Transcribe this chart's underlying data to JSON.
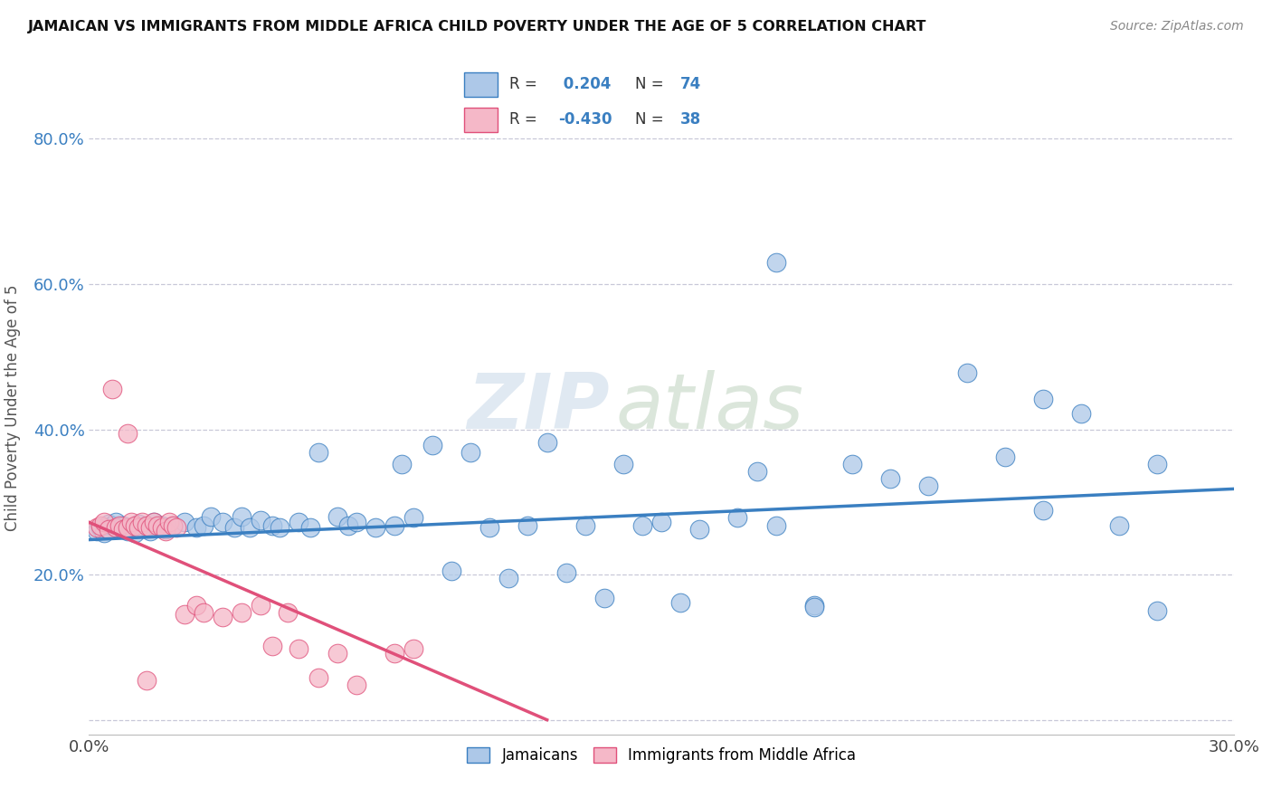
{
  "title": "JAMAICAN VS IMMIGRANTS FROM MIDDLE AFRICA CHILD POVERTY UNDER THE AGE OF 5 CORRELATION CHART",
  "source": "Source: ZipAtlas.com",
  "ylabel": "Child Poverty Under the Age of 5",
  "xlim": [
    0.0,
    0.3
  ],
  "ylim": [
    -0.02,
    0.88
  ],
  "xticks": [
    0.0,
    0.05,
    0.1,
    0.15,
    0.2,
    0.25,
    0.3
  ],
  "yticks": [
    0.0,
    0.2,
    0.4,
    0.6,
    0.8
  ],
  "yticklabels": [
    "",
    "20.0%",
    "40.0%",
    "60.0%",
    "80.0%"
  ],
  "blue_color": "#adc8e8",
  "pink_color": "#f5b8c8",
  "blue_line_color": "#3a7fc1",
  "pink_line_color": "#e0507a",
  "r_blue": 0.204,
  "n_blue": 74,
  "r_pink": -0.43,
  "n_pink": 38,
  "watermark_zip": "ZIP",
  "watermark_atlas": "atlas",
  "background": "#ffffff",
  "grid_color": "#c8c8d8",
  "blue_scatter_x": [
    0.002,
    0.003,
    0.004,
    0.005,
    0.005,
    0.006,
    0.007,
    0.008,
    0.009,
    0.01,
    0.011,
    0.012,
    0.013,
    0.014,
    0.015,
    0.016,
    0.017,
    0.018,
    0.019,
    0.02,
    0.022,
    0.025,
    0.028,
    0.03,
    0.032,
    0.035,
    0.038,
    0.04,
    0.042,
    0.045,
    0.048,
    0.05,
    0.055,
    0.058,
    0.06,
    0.065,
    0.068,
    0.07,
    0.075,
    0.08,
    0.082,
    0.085,
    0.09,
    0.095,
    0.1,
    0.105,
    0.11,
    0.115,
    0.12,
    0.125,
    0.13,
    0.135,
    0.14,
    0.145,
    0.15,
    0.155,
    0.16,
    0.17,
    0.175,
    0.18,
    0.19,
    0.2,
    0.21,
    0.22,
    0.23,
    0.24,
    0.25,
    0.26,
    0.27,
    0.28,
    0.18,
    0.19,
    0.25,
    0.28
  ],
  "blue_scatter_y": [
    0.26,
    0.265,
    0.258,
    0.262,
    0.27,
    0.268,
    0.272,
    0.265,
    0.268,
    0.26,
    0.265,
    0.258,
    0.27,
    0.265,
    0.268,
    0.26,
    0.272,
    0.265,
    0.268,
    0.262,
    0.268,
    0.272,
    0.265,
    0.268,
    0.28,
    0.272,
    0.265,
    0.28,
    0.265,
    0.275,
    0.268,
    0.265,
    0.272,
    0.265,
    0.368,
    0.28,
    0.268,
    0.272,
    0.265,
    0.268,
    0.352,
    0.278,
    0.378,
    0.205,
    0.368,
    0.265,
    0.195,
    0.268,
    0.382,
    0.202,
    0.268,
    0.168,
    0.352,
    0.268,
    0.272,
    0.162,
    0.262,
    0.278,
    0.342,
    0.268,
    0.158,
    0.352,
    0.332,
    0.322,
    0.478,
    0.362,
    0.288,
    0.422,
    0.268,
    0.352,
    0.63,
    0.155,
    0.442,
    0.15
  ],
  "pink_scatter_x": [
    0.002,
    0.003,
    0.004,
    0.005,
    0.006,
    0.007,
    0.008,
    0.009,
    0.01,
    0.011,
    0.012,
    0.013,
    0.014,
    0.015,
    0.016,
    0.017,
    0.018,
    0.019,
    0.02,
    0.021,
    0.022,
    0.023,
    0.025,
    0.028,
    0.03,
    0.035,
    0.04,
    0.045,
    0.048,
    0.052,
    0.055,
    0.06,
    0.065,
    0.07,
    0.08,
    0.085,
    0.01,
    0.015
  ],
  "pink_scatter_y": [
    0.265,
    0.268,
    0.272,
    0.262,
    0.455,
    0.265,
    0.268,
    0.262,
    0.265,
    0.272,
    0.268,
    0.265,
    0.272,
    0.268,
    0.265,
    0.272,
    0.268,
    0.265,
    0.26,
    0.272,
    0.268,
    0.265,
    0.145,
    0.158,
    0.148,
    0.142,
    0.148,
    0.158,
    0.102,
    0.148,
    0.098,
    0.058,
    0.092,
    0.048,
    0.092,
    0.098,
    0.395,
    0.055
  ],
  "blue_trend_x0": 0.0,
  "blue_trend_y0": 0.248,
  "blue_trend_x1": 0.3,
  "blue_trend_y1": 0.318,
  "pink_trend_x0": 0.0,
  "pink_trend_y0": 0.272,
  "pink_trend_x1": 0.12,
  "pink_trend_y1": 0.0
}
